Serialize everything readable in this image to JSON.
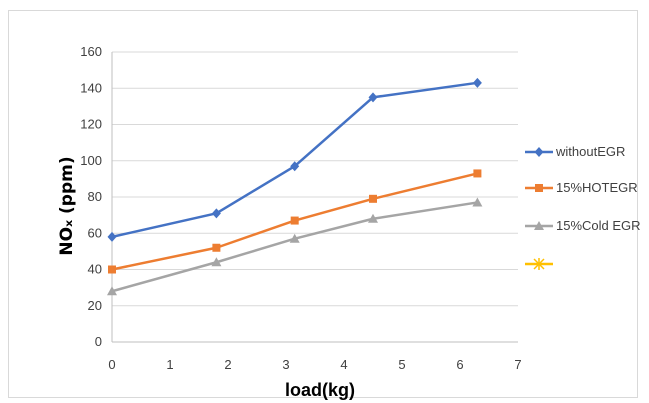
{
  "chart_data": {
    "type": "line",
    "title": "",
    "xlabel": "load(kg)",
    "ylabel": "NOₓ (ppm)",
    "xlim": [
      0,
      7
    ],
    "ylim": [
      0,
      160
    ],
    "x_ticks": [
      "0",
      "1",
      "2",
      "3",
      "4",
      "5",
      "6",
      "7"
    ],
    "y_ticks": [
      "0",
      "20",
      "40",
      "60",
      "80",
      "100",
      "120",
      "140",
      "160"
    ],
    "grid": "horizontal",
    "legend_position": "right",
    "series": [
      {
        "name": "withoutEGR",
        "color": "#4472c4",
        "marker": "diamond",
        "x": [
          0,
          1.8,
          3.15,
          4.5,
          6.3
        ],
        "y": [
          58,
          71,
          97,
          135,
          143
        ]
      },
      {
        "name": "15%HOTEGR",
        "color": "#ed7d31",
        "marker": "square",
        "x": [
          0,
          1.8,
          3.15,
          4.5,
          6.3
        ],
        "y": [
          40,
          52,
          67,
          79,
          93
        ]
      },
      {
        "name": "15%Cold EGR",
        "color": "#a5a5a5",
        "marker": "triangle",
        "x": [
          0,
          1.8,
          3.15,
          4.5,
          6.3
        ],
        "y": [
          28,
          44,
          57,
          68,
          77
        ]
      },
      {
        "name": "",
        "color": "#ffc000",
        "marker": "star",
        "x": [],
        "y": []
      }
    ]
  }
}
